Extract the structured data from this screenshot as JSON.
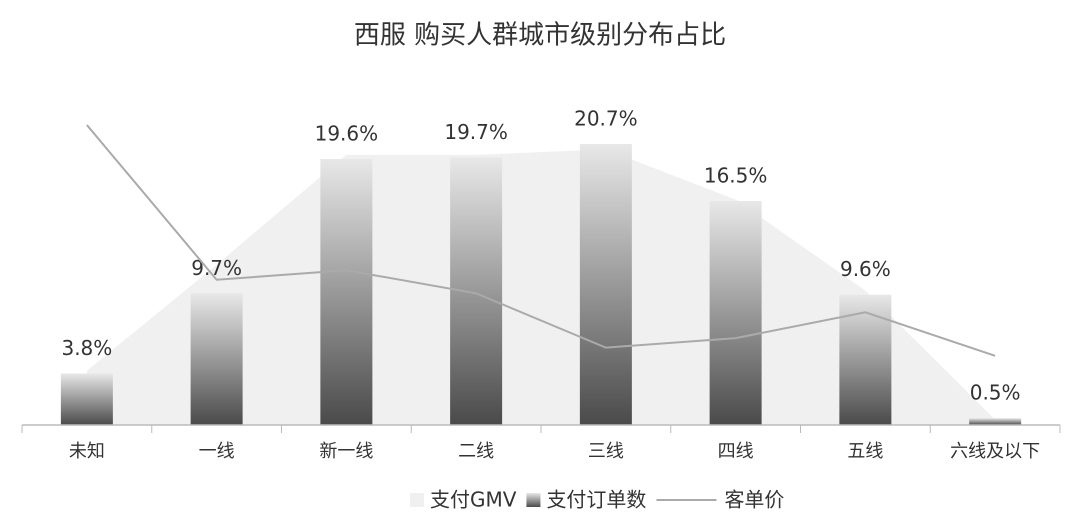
{
  "chart_data": {
    "type": "bar",
    "title": "西服 购买人群城市级别分布占比",
    "categories": [
      "未知",
      "一线",
      "新一线",
      "二线",
      "三线",
      "四线",
      "五线",
      "六线及以下"
    ],
    "series": [
      {
        "name": "支付GMV",
        "type": "area",
        "color": "#f0f0f0",
        "values": [
          4.0,
          11.8,
          19.9,
          19.9,
          20.3,
          16.6,
          9.9,
          0.4
        ]
      },
      {
        "name": "支付订单数",
        "type": "bar",
        "color": "#555555",
        "values": [
          3.8,
          9.7,
          19.6,
          19.7,
          20.7,
          16.5,
          9.6,
          0.5
        ],
        "value_labels": [
          "3.8%",
          "9.7%",
          "19.6%",
          "19.7%",
          "20.7%",
          "16.5%",
          "9.6%",
          "0.5%"
        ]
      },
      {
        "name": "客单价",
        "type": "line",
        "color": "#aaaaaa",
        "values": [
          22.1,
          10.7,
          11.4,
          9.7,
          5.7,
          6.4,
          8.3,
          5.1
        ]
      }
    ]
  }
}
